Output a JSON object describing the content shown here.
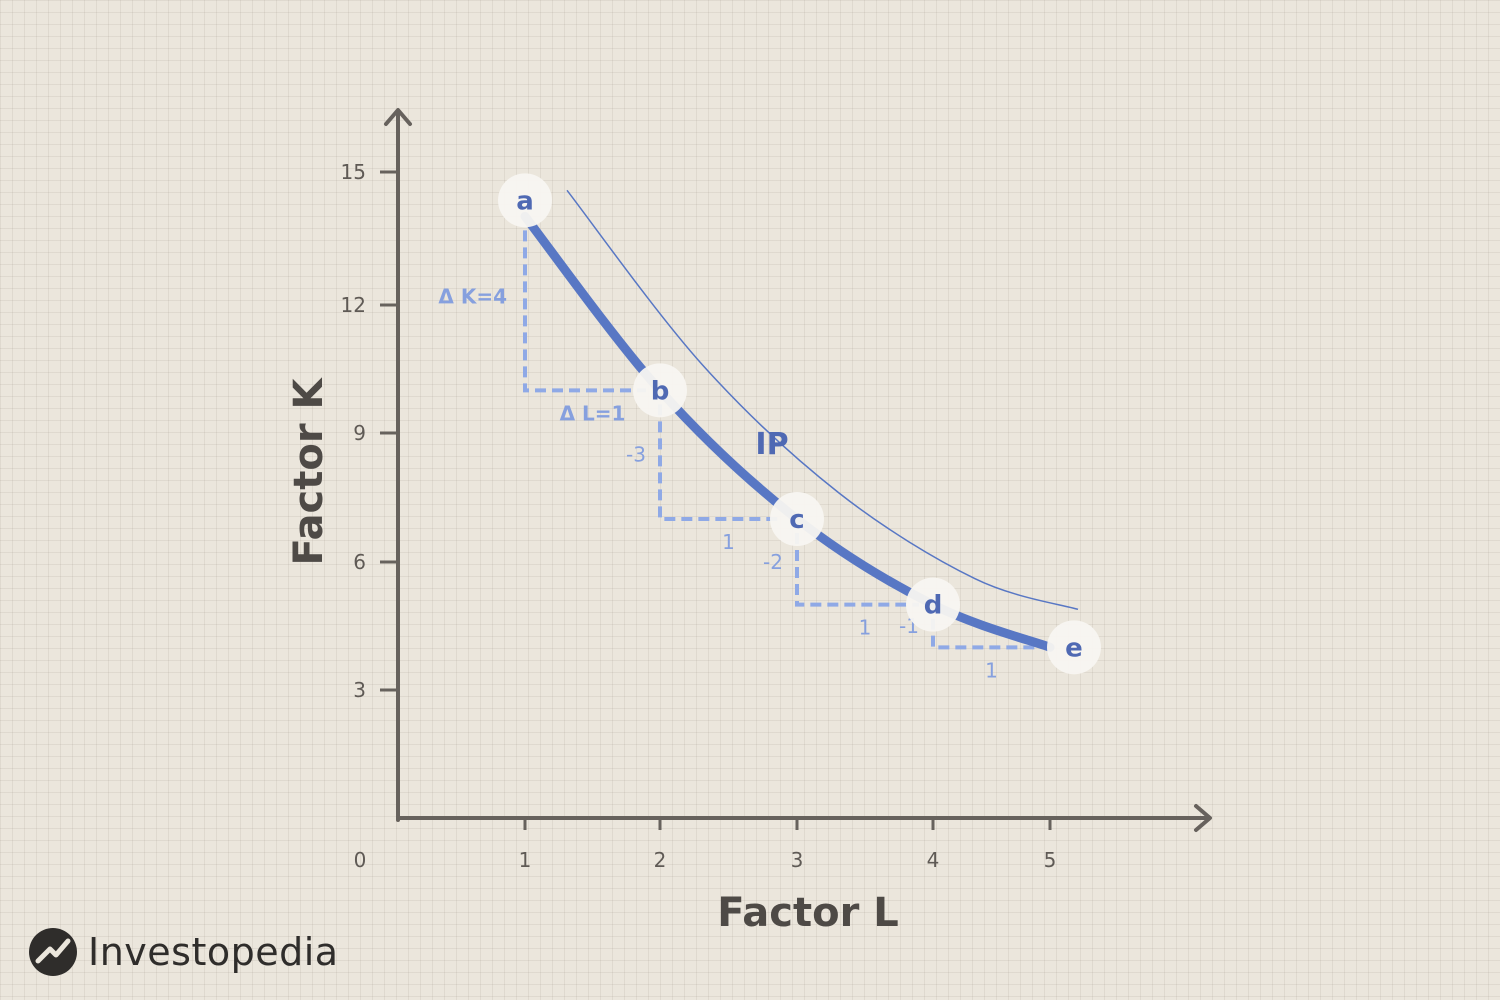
{
  "chart_data": {
    "type": "line",
    "xlabel": "Factor L",
    "ylabel": "Factor K",
    "origin_label": "0",
    "xlim": [
      0,
      6
    ],
    "ylim": [
      0,
      16
    ],
    "x_ticks": [
      1,
      2,
      3,
      4,
      5
    ],
    "y_ticks": [
      3,
      6,
      9,
      12,
      15
    ],
    "series": [
      {
        "name": "IP",
        "points": [
          {
            "label": "a",
            "x": 1,
            "y": 14
          },
          {
            "label": "b",
            "x": 2,
            "y": 10
          },
          {
            "label": "c",
            "x": 3,
            "y": 7
          },
          {
            "label": "d",
            "x": 4,
            "y": 5
          },
          {
            "label": "e",
            "x": 5,
            "y": 4
          }
        ]
      }
    ],
    "steps": [
      {
        "dK": "Δ K=4",
        "dL": "Δ L=1"
      },
      {
        "dK": "-3",
        "dL": "1"
      },
      {
        "dK": "-2",
        "dL": "1"
      },
      {
        "dK": "-1",
        "dL": "1"
      }
    ],
    "curve_label": "IP",
    "colors": {
      "curve": "#5877c4",
      "dashes": "#8fa9e6",
      "axis": "#67625d"
    }
  },
  "brand": {
    "name": "Investopedia",
    "icon": "investopedia-logo-icon"
  }
}
